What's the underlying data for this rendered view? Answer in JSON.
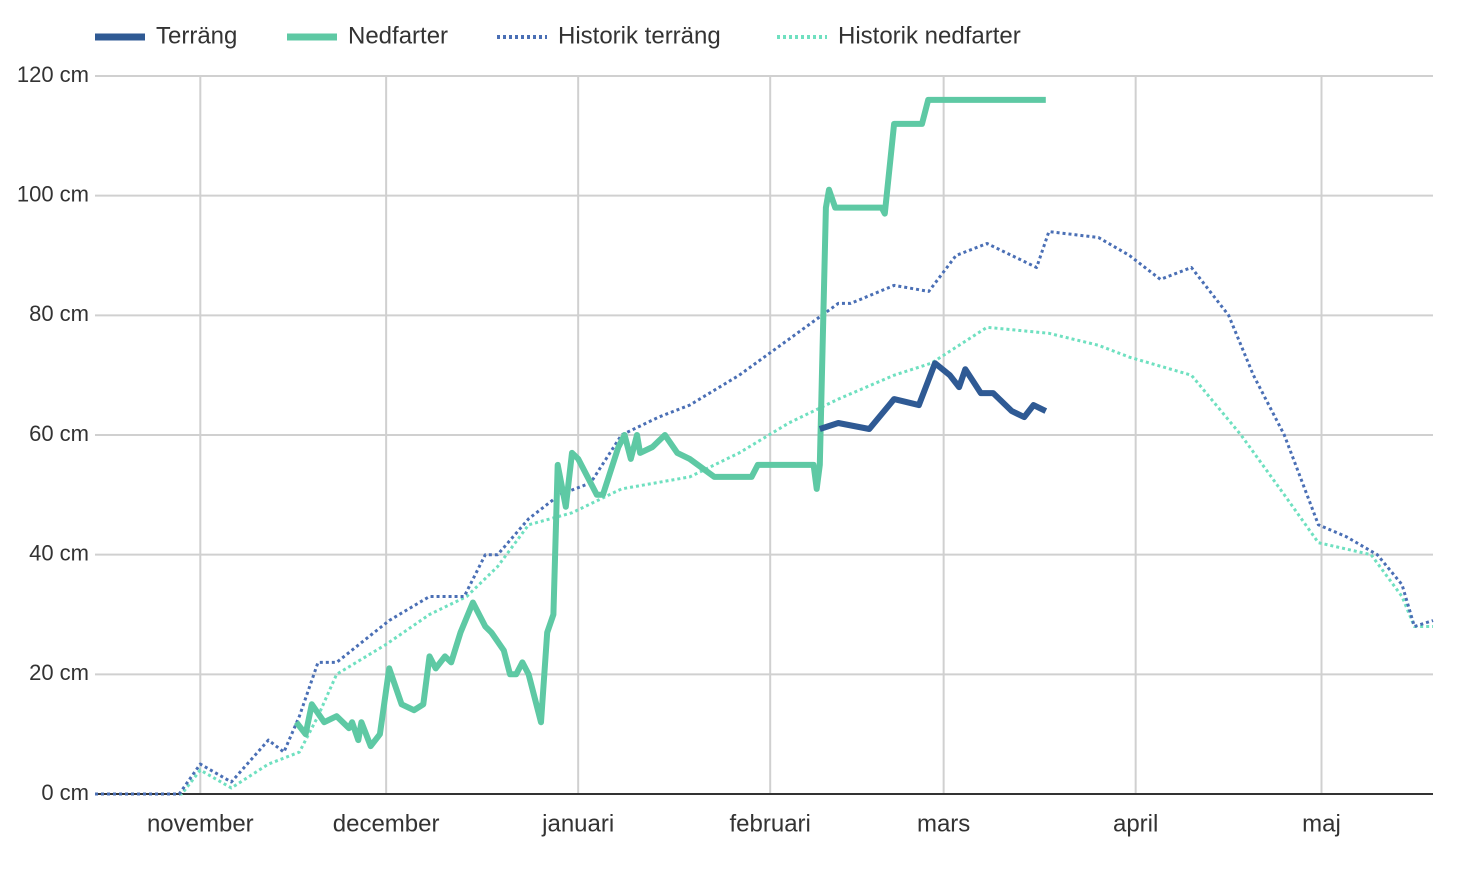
{
  "chart_data": {
    "type": "line",
    "xlim": [
      -17,
      199
    ],
    "xticks": [
      {
        "value": 0,
        "label": "november"
      },
      {
        "value": 30,
        "label": "december"
      },
      {
        "value": 61,
        "label": "januari"
      },
      {
        "value": 92,
        "label": "februari"
      },
      {
        "value": 120,
        "label": "mars"
      },
      {
        "value": 151,
        "label": "april"
      },
      {
        "value": 181,
        "label": "maj"
      }
    ],
    "ylim": [
      0,
      120
    ],
    "yticks": [
      {
        "value": 0,
        "label": "0 cm"
      },
      {
        "value": 20,
        "label": "20 cm"
      },
      {
        "value": 40,
        "label": "40 cm"
      },
      {
        "value": 60,
        "label": "60 cm"
      },
      {
        "value": 80,
        "label": "80 cm"
      },
      {
        "value": 100,
        "label": "100 cm"
      },
      {
        "value": 120,
        "label": "120 cm"
      }
    ],
    "grid": true,
    "legend": "top-left",
    "series": [
      {
        "name": "Terräng",
        "color": "#2f5a94",
        "style": "solid",
        "x": [
          100,
          103,
          108,
          112,
          116,
          118.6,
          121,
          122.5,
          123.5,
          126,
          128,
          131,
          133,
          134.5,
          136.5
        ],
        "values": [
          61,
          62,
          61,
          66,
          65,
          72,
          70,
          68,
          71,
          67,
          67,
          64,
          63,
          65,
          64
        ]
      },
      {
        "name": "Nedfarter",
        "color": "#5ec9a4",
        "style": "solid",
        "x": [
          15.5,
          17,
          18,
          20,
          22,
          24,
          24.5,
          25.5,
          26,
          27.5,
          29,
          30.5,
          32.5,
          34.5,
          36,
          37,
          38,
          39.5,
          40.5,
          42,
          44,
          46,
          47,
          49,
          50,
          51,
          52,
          53,
          55,
          56,
          57,
          57.7,
          59,
          60,
          61,
          64,
          65,
          67.5,
          68.5,
          69.5,
          70.5,
          71,
          73,
          75,
          77,
          79,
          83,
          89,
          90,
          99,
          99.5,
          100,
          101,
          101.5,
          102.5,
          110,
          110.5,
          112,
          116.5,
          117.5,
          136.5
        ],
        "values": [
          12,
          10,
          15,
          12,
          13,
          11,
          12,
          9,
          12,
          8,
          10,
          21,
          15,
          14,
          15,
          23,
          21,
          23,
          22,
          27,
          32,
          28,
          27,
          24,
          20,
          20,
          22,
          20,
          12,
          27,
          30,
          55,
          48,
          57,
          56,
          50,
          50,
          58,
          60,
          56,
          60,
          57,
          58,
          60,
          57,
          56,
          53,
          53,
          55,
          55,
          51,
          55,
          98,
          101,
          98,
          98,
          97,
          112,
          112,
          116,
          116
        ]
      },
      {
        "name": "Historik terräng",
        "color": "#4a6fb5",
        "style": "dotted",
        "x": [
          -17,
          -3.4,
          0,
          5,
          11,
          13.5,
          16,
          19,
          22,
          30.5,
          37,
          42.6,
          46,
          48,
          53,
          58,
          63,
          68,
          74,
          79,
          87,
          95,
          103,
          105,
          112,
          117.6,
          122,
          127,
          135,
          137,
          145,
          150,
          155,
          160,
          166,
          170,
          175,
          180.5,
          185,
          190,
          194,
          196,
          199
        ],
        "values": [
          0,
          0,
          5,
          2,
          9,
          7,
          13,
          22,
          22,
          29,
          33,
          33,
          40,
          40,
          46,
          50,
          52,
          60,
          63,
          65,
          70,
          76,
          82,
          82,
          85,
          84,
          90,
          92,
          88,
          94,
          93,
          90,
          86,
          88,
          80,
          70,
          60,
          45,
          43,
          40,
          35,
          28,
          29
        ]
      },
      {
        "name": "Historik nedfarter",
        "color": "#6fe0c0",
        "style": "dotted",
        "x": [
          -17,
          -3,
          0,
          5,
          11,
          16,
          19,
          22,
          30,
          37,
          43,
          48,
          53,
          60,
          68,
          79,
          87,
          95,
          103,
          112,
          118,
          127,
          137,
          145,
          150,
          160,
          168,
          175,
          180.5,
          189,
          194,
          196,
          199
        ],
        "values": [
          0,
          0,
          4,
          1,
          5,
          7,
          13,
          20,
          25,
          30,
          33,
          38,
          45,
          47,
          51,
          53,
          57,
          62,
          66,
          70,
          72,
          78,
          77,
          75,
          73,
          70,
          60,
          50,
          42,
          40,
          33,
          28,
          28
        ]
      }
    ]
  }
}
